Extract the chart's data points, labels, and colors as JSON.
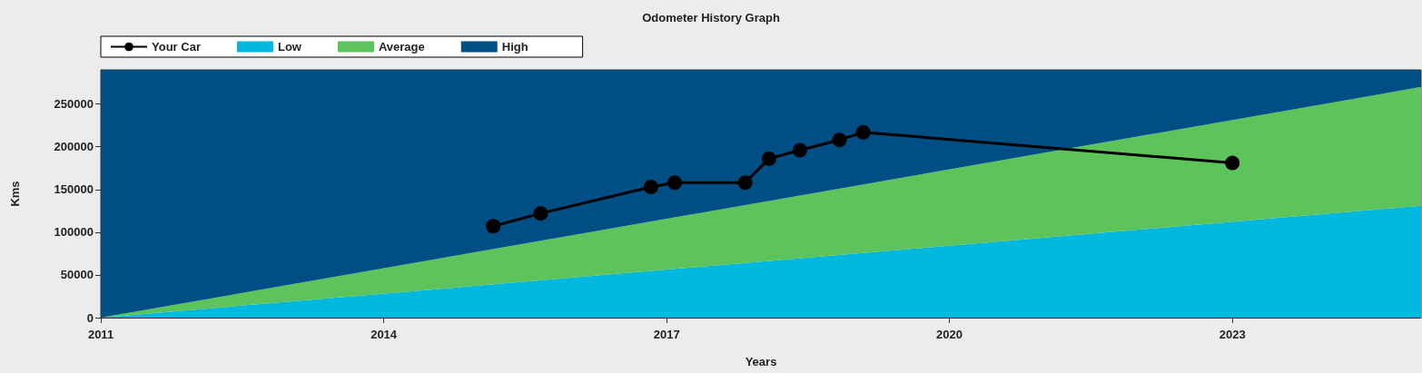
{
  "chart_data": {
    "type": "area",
    "stacked": true,
    "title": "Odometer History Graph",
    "xlabel": "Years",
    "ylabel": "Kms",
    "xlim": [
      "2011",
      "2025"
    ],
    "xticks": [
      "2011",
      "2014",
      "2017",
      "2020",
      "2023"
    ],
    "ylim": [
      0,
      290000
    ],
    "yticks": [
      0,
      50000,
      100000,
      150000,
      200000,
      250000
    ],
    "legend": "top left",
    "series": [
      {
        "name": "Your Car",
        "type": "line",
        "marker": "circle",
        "color": "#000000",
        "x": [
          "2015-03",
          "2015-09",
          "2016-11",
          "2017-02",
          "2017-11",
          "2018-02",
          "2018-06",
          "2018-11",
          "2019-02",
          "2023-01"
        ],
        "values": [
          107000,
          122000,
          153000,
          158000,
          158000,
          186000,
          196000,
          208000,
          217000,
          181000
        ]
      },
      {
        "name": "Low",
        "color": "#00b8de",
        "x": [
          "2011",
          "2025"
        ],
        "values": [
          0,
          131000
        ]
      },
      {
        "name": "Average",
        "color": "#5cc45a",
        "x": [
          "2011",
          "2025"
        ],
        "values": [
          0,
          139000
        ]
      },
      {
        "name": "High",
        "color": "#004f84",
        "x": [
          "2011",
          "2025"
        ],
        "values": [
          290000,
          20000
        ]
      }
    ]
  }
}
